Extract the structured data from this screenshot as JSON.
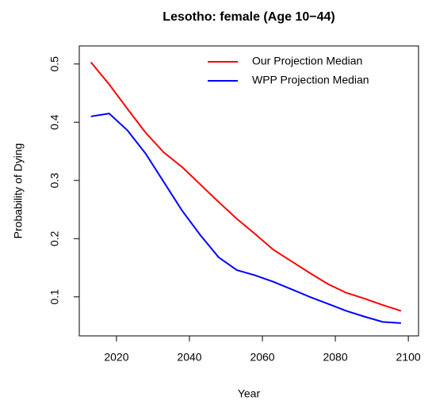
{
  "chart_data": {
    "type": "line",
    "title": "Lesotho: female (Age 10−44)",
    "x_label": "Year",
    "y_label": "Probability of Dying",
    "x": [
      2013,
      2018,
      2023,
      2028,
      2033,
      2038,
      2043,
      2048,
      2053,
      2058,
      2063,
      2068,
      2073,
      2078,
      2083,
      2088,
      2093,
      2098
    ],
    "series": [
      {
        "name": "Our Projection Median",
        "color": "#ff0000",
        "values": [
          0.503,
          0.465,
          0.423,
          0.382,
          0.348,
          0.323,
          0.293,
          0.263,
          0.234,
          0.208,
          0.181,
          0.161,
          0.141,
          0.122,
          0.107,
          0.097,
          0.086,
          0.076
        ]
      },
      {
        "name": "WPP Projection Median",
        "color": "#0000ff",
        "values": [
          0.41,
          0.415,
          0.386,
          0.346,
          0.297,
          0.248,
          0.206,
          0.168,
          0.146,
          0.137,
          0.126,
          0.113,
          0.1,
          0.088,
          0.076,
          0.066,
          0.057,
          0.055
        ]
      }
    ],
    "xlim": [
      2009.8,
      2102.8
    ],
    "xticks": [
      2020,
      2040,
      2060,
      2080,
      2100
    ],
    "ylim": [
      0.033,
      0.531
    ],
    "yticks": [
      0.1,
      0.2,
      0.3,
      0.4,
      0.5
    ],
    "legend": "topright"
  }
}
